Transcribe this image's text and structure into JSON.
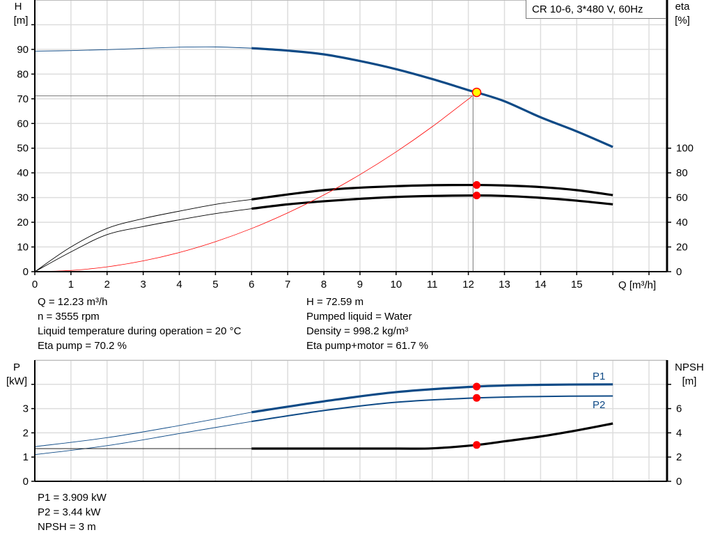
{
  "product_label": "CR 10-6, 3*480 V, 60Hz",
  "colors": {
    "head": "#0e4a86",
    "power": "#0e4a86",
    "efficiency": "#000000",
    "npsh": "#000000",
    "system_curve": "#ff0000",
    "duty_point": "#ff0000",
    "duty_point_head_fill": "#ffff00",
    "grid": "#dddddd"
  },
  "top_info": {
    "left": [
      "Q = 12.23 m³/h",
      "n = 3555 rpm",
      "Liquid temperature during operation = 20 °C",
      "Eta pump = 70.2 %"
    ],
    "right": [
      "H = 72.59 m",
      "Pumped liquid = Water",
      "Density = 998.2 kg/m³",
      "Eta pump+motor = 61.7 %"
    ]
  },
  "bottom_info": [
    "P1 = 3.909 kW",
    "P2 = 3.44 kW",
    "NPSH = 3 m"
  ],
  "chart_data": [
    {
      "type": "line",
      "xlabel": "Q [m³/h]",
      "ylabel_left": [
        "H",
        "[m]"
      ],
      "ylabel_right": [
        "eta",
        "[%]"
      ],
      "xlim": [
        0,
        17.5
      ],
      "ylim_left": [
        0,
        110
      ],
      "ylim_right": [
        0,
        220
      ],
      "x_ticks": [
        0,
        1,
        2,
        3,
        4,
        5,
        6,
        7,
        8,
        9,
        10,
        11,
        12,
        13,
        14,
        15
      ],
      "y_ticks_left": [
        0,
        10,
        20,
        30,
        40,
        50,
        60,
        70,
        80,
        90
      ],
      "y_ticks_right": [
        0,
        20,
        40,
        60,
        80,
        100
      ],
      "grid": true,
      "series": [
        {
          "id": "H",
          "axis": "left",
          "color": "#0e4a86",
          "thick_from": 6,
          "x": [
            0,
            1,
            2,
            3,
            4,
            5,
            6,
            7,
            8,
            9,
            10,
            11,
            12,
            12.23,
            13,
            14,
            15,
            16
          ],
          "y": [
            89.3,
            89.5,
            89.9,
            90.4,
            90.9,
            91.0,
            90.5,
            89.5,
            88.0,
            85.3,
            82.0,
            78.0,
            73.5,
            72.59,
            69.0,
            62.5,
            56.8,
            50.5
          ]
        },
        {
          "id": "eta_pump",
          "axis": "right",
          "color": "#000000",
          "thick_from": 6,
          "x": [
            0,
            1,
            2,
            3,
            4,
            5,
            6,
            7,
            8,
            9,
            10,
            11,
            12.23,
            13,
            14,
            15,
            16
          ],
          "y": [
            0,
            20,
            35,
            43,
            49,
            54.5,
            58.5,
            62.5,
            66,
            68,
            69.2,
            70,
            70.2,
            69.8,
            68.5,
            66,
            62
          ]
        },
        {
          "id": "eta_pump_motor",
          "axis": "right",
          "color": "#000000",
          "thick_from": 6,
          "x": [
            0,
            1,
            2,
            3,
            4,
            5,
            6,
            7,
            8,
            9,
            10,
            11,
            12.23,
            13,
            14,
            15,
            16
          ],
          "y": [
            0,
            16,
            30,
            36.5,
            42,
            47,
            51,
            54.5,
            57,
            59,
            60.5,
            61.3,
            61.7,
            61.3,
            59.8,
            57.5,
            54.5
          ]
        },
        {
          "id": "system_curve",
          "axis": "left",
          "color": "#ff0000",
          "thin": true,
          "x": [
            0,
            1,
            2,
            3,
            4,
            5,
            6,
            7,
            8,
            9,
            10,
            11,
            12.1
          ],
          "y": [
            0,
            0.49,
            1.94,
            4.37,
            7.76,
            12.13,
            17.47,
            23.8,
            31.05,
            39.3,
            48.5,
            58.7,
            71.0
          ]
        }
      ],
      "reference_lines": {
        "Q": 12.13,
        "H": 71.2
      },
      "duty_points": [
        {
          "series": "H",
          "x": 12.23,
          "y": 72.59
        },
        {
          "series": "eta_pump",
          "x": 12.23,
          "y": 70.2
        },
        {
          "series": "eta_pump_motor",
          "x": 12.23,
          "y": 61.7
        }
      ]
    },
    {
      "type": "line",
      "ylabel_left": [
        "P",
        "[kW]"
      ],
      "ylabel_right": [
        "NPSH",
        "[m]"
      ],
      "xlim": [
        0,
        17.5
      ],
      "ylim_left": [
        0,
        5
      ],
      "ylim_right": [
        0,
        10
      ],
      "y_ticks_left": [
        0,
        1,
        2,
        3
      ],
      "y_ticks_right": [
        0,
        2,
        4,
        6
      ],
      "grid": true,
      "series": [
        {
          "id": "P1",
          "name": "P1",
          "axis": "left",
          "color": "#0e4a86",
          "thick_from": 6,
          "x": [
            0,
            2,
            4,
            6,
            8,
            10,
            12.23,
            14,
            16
          ],
          "y": [
            1.43,
            1.8,
            2.3,
            2.85,
            3.3,
            3.68,
            3.909,
            3.98,
            4.0
          ]
        },
        {
          "id": "P2",
          "name": "P2",
          "axis": "left",
          "color": "#0e4a86",
          "thick_from": 6,
          "medium": true,
          "x": [
            0,
            2,
            4,
            6,
            8,
            10,
            12.23,
            14,
            16
          ],
          "y": [
            1.1,
            1.47,
            1.97,
            2.47,
            2.92,
            3.26,
            3.44,
            3.5,
            3.52
          ]
        },
        {
          "id": "NPSH",
          "axis": "right",
          "color": "#000000",
          "thick_from": 6,
          "x": [
            0,
            2,
            4,
            6,
            8,
            10,
            11,
            12.23,
            13,
            14,
            15,
            16
          ],
          "y": [
            2.7,
            2.7,
            2.7,
            2.7,
            2.7,
            2.7,
            2.72,
            3.0,
            3.3,
            3.7,
            4.2,
            4.77
          ]
        }
      ],
      "duty_points": [
        {
          "series": "P1",
          "x": 12.23,
          "y": 3.909
        },
        {
          "series": "P2",
          "x": 12.23,
          "y": 3.44
        },
        {
          "series": "NPSH",
          "x": 12.23,
          "y": 3
        }
      ]
    }
  ]
}
